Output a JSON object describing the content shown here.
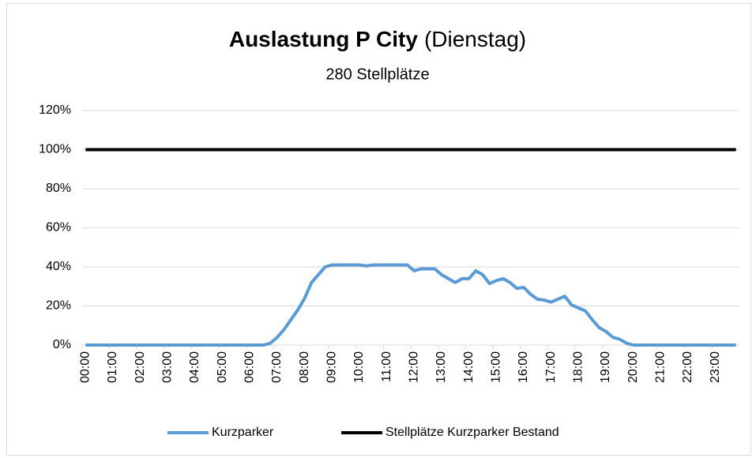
{
  "chart_data": {
    "type": "line",
    "title": "Auslastung P City",
    "title_note": "(Dienstag)",
    "subtitle": "280 Stellplätze",
    "categories": [
      "00:00",
      null,
      null,
      null,
      "01:00",
      null,
      null,
      null,
      "02:00",
      null,
      null,
      null,
      "03:00",
      null,
      null,
      null,
      "04:00",
      null,
      null,
      null,
      "05:00",
      null,
      null,
      null,
      "06:00",
      null,
      null,
      null,
      "07:00",
      null,
      null,
      null,
      "08:00",
      null,
      null,
      null,
      "09:00",
      null,
      null,
      null,
      "10:00",
      null,
      null,
      null,
      "11:00",
      null,
      null,
      null,
      "12:00",
      null,
      null,
      null,
      "13:00",
      null,
      null,
      null,
      "14:00",
      null,
      null,
      null,
      "15:00",
      null,
      null,
      null,
      "16:00",
      null,
      null,
      null,
      "17:00",
      null,
      null,
      null,
      "18:00",
      null,
      null,
      null,
      "19:00",
      null,
      null,
      null,
      "20:00",
      null,
      null,
      null,
      "21:00",
      null,
      null,
      null,
      "22:00",
      null,
      null,
      null,
      "23:00",
      null,
      null,
      null
    ],
    "series": [
      {
        "name": "Kurzparker",
        "color": "#5b9bd5",
        "values": [
          0,
          0,
          0,
          0,
          0,
          0,
          0,
          0,
          0,
          0,
          0,
          0,
          0,
          0,
          0,
          0,
          0,
          0,
          0,
          0,
          0,
          0,
          0,
          0,
          0,
          0,
          0,
          1,
          4,
          8,
          13,
          18,
          24,
          32,
          36,
          40,
          41,
          41,
          41,
          41,
          41,
          40.5,
          41,
          41,
          41,
          41,
          41,
          41,
          38,
          39,
          39,
          39,
          36,
          34,
          32,
          34,
          34,
          38,
          36,
          31.5,
          33,
          34,
          32,
          29,
          29.5,
          26,
          23.5,
          23,
          22,
          23.5,
          25,
          20.5,
          19,
          17.5,
          13,
          9,
          7,
          4,
          3,
          1,
          0,
          0,
          0,
          0,
          0,
          0,
          0,
          0,
          0,
          0,
          0,
          0,
          0,
          0,
          0,
          0
        ]
      },
      {
        "name": "Stellplätze Kurzparker Bestand",
        "color": "#000000",
        "values": [
          100,
          100,
          100,
          100,
          100,
          100,
          100,
          100,
          100,
          100,
          100,
          100,
          100,
          100,
          100,
          100,
          100,
          100,
          100,
          100,
          100,
          100,
          100,
          100,
          100,
          100,
          100,
          100,
          100,
          100,
          100,
          100,
          100,
          100,
          100,
          100,
          100,
          100,
          100,
          100,
          100,
          100,
          100,
          100,
          100,
          100,
          100,
          100,
          100,
          100,
          100,
          100,
          100,
          100,
          100,
          100,
          100,
          100,
          100,
          100,
          100,
          100,
          100,
          100,
          100,
          100,
          100,
          100,
          100,
          100,
          100,
          100,
          100,
          100,
          100,
          100,
          100,
          100,
          100,
          100,
          100,
          100,
          100,
          100,
          100,
          100,
          100,
          100,
          100,
          100,
          100,
          100,
          100,
          100,
          100,
          100
        ]
      }
    ],
    "ylim": [
      0,
      120
    ],
    "yticks": [
      {
        "value": 0,
        "label": "0%"
      },
      {
        "value": 20,
        "label": "20%"
      },
      {
        "value": 40,
        "label": "40%"
      },
      {
        "value": 60,
        "label": "60%"
      },
      {
        "value": 80,
        "label": "80%"
      },
      {
        "value": 100,
        "label": "100%"
      },
      {
        "value": 120,
        "label": "120%"
      }
    ],
    "grid": true,
    "legend": "bottom"
  }
}
